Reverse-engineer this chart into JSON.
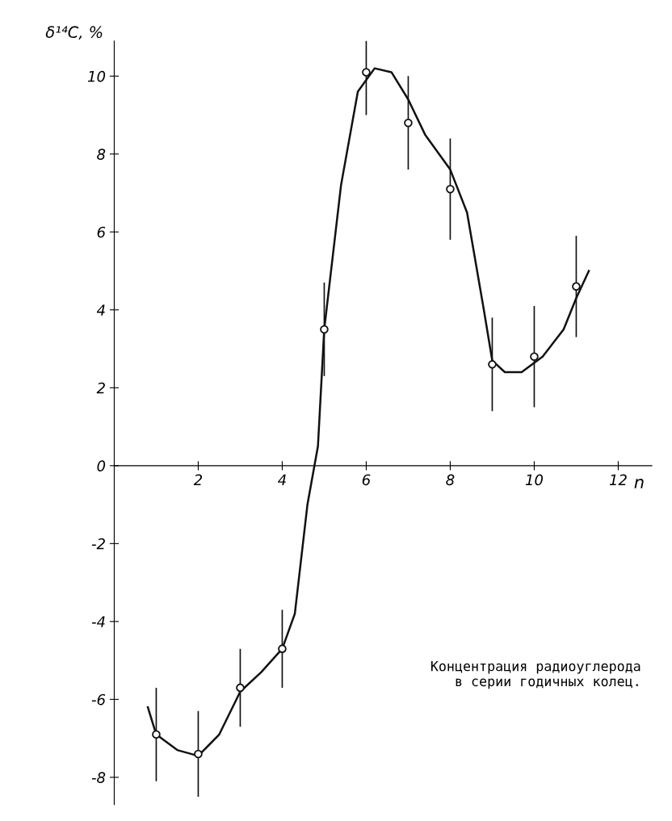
{
  "chart_data": {
    "type": "scatter",
    "ylabel": "δ¹⁴C, %",
    "xlabel": "n",
    "xlim": [
      0,
      12.8
    ],
    "ylim": [
      -8.7,
      10.9
    ],
    "xticks": [
      2,
      4,
      6,
      8,
      10,
      12
    ],
    "yticks": [
      -8,
      -6,
      -4,
      -2,
      0,
      2,
      4,
      6,
      8,
      10
    ],
    "grid": false,
    "legend": false,
    "marker": "circle",
    "annotations": [
      "Концентрация радиоуглерода\nв серии годичных колец."
    ],
    "series": [
      {
        "color": "#111111",
        "x": [
          1,
          2,
          3,
          4,
          5,
          6,
          7,
          8,
          9,
          10,
          11
        ],
        "values": [
          -6.9,
          -7.4,
          -5.7,
          -4.7,
          3.5,
          10.1,
          8.8,
          7.1,
          2.6,
          2.8,
          4.6
        ],
        "errors": [
          1.2,
          1.1,
          1.0,
          1.0,
          1.2,
          1.1,
          1.2,
          1.3,
          1.2,
          1.3,
          1.3
        ]
      },
      {
        "type": "line",
        "color": "#111111",
        "line_style": "solid",
        "marker": "none",
        "x": [
          0.8,
          1,
          1.5,
          2,
          2.5,
          3,
          3.5,
          4,
          4.3,
          4.6,
          4.85,
          5,
          5.4,
          5.8,
          6.2,
          6.6,
          7,
          7.4,
          8,
          8.4,
          8.8,
          9,
          9.3,
          9.7,
          10.2,
          10.7,
          11,
          11.3
        ],
        "values": [
          -6.2,
          -6.9,
          -7.3,
          -7.45,
          -6.9,
          -5.8,
          -5.3,
          -4.7,
          -3.8,
          -1.0,
          0.5,
          3.5,
          7.2,
          9.6,
          10.2,
          10.1,
          9.4,
          8.5,
          7.6,
          6.5,
          4.0,
          2.7,
          2.4,
          2.4,
          2.8,
          3.5,
          4.3,
          5.0
        ]
      }
    ]
  }
}
